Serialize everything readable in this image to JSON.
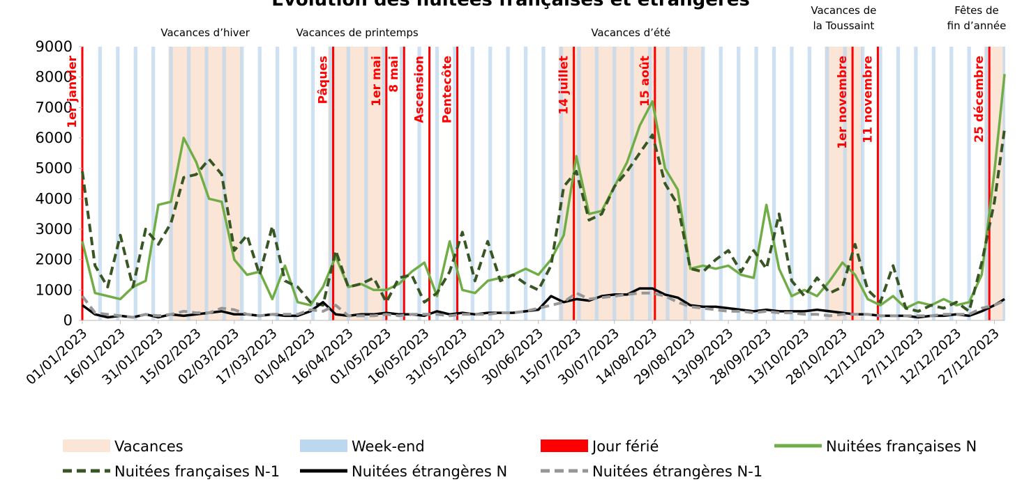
{
  "chart_data": {
    "type": "line",
    "title": "Evolution des nuitées françaises et étrangères",
    "x": [
      "01/01/2023",
      "06/01/2023",
      "11/01/2023",
      "16/01/2023",
      "21/01/2023",
      "26/01/2023",
      "31/01/2023",
      "05/02/2023",
      "10/02/2023",
      "15/02/2023",
      "20/02/2023",
      "25/02/2023",
      "02/03/2023",
      "07/03/2023",
      "12/03/2023",
      "17/03/2023",
      "22/03/2023",
      "27/03/2023",
      "01/04/2023",
      "06/04/2023",
      "11/04/2023",
      "16/04/2023",
      "21/04/2023",
      "26/04/2023",
      "01/05/2023",
      "06/05/2023",
      "11/05/2023",
      "16/05/2023",
      "21/05/2023",
      "26/05/2023",
      "31/05/2023",
      "05/06/2023",
      "10/06/2023",
      "15/06/2023",
      "20/06/2023",
      "25/06/2023",
      "30/06/2023",
      "05/07/2023",
      "10/07/2023",
      "15/07/2023",
      "20/07/2023",
      "25/07/2023",
      "30/07/2023",
      "04/08/2023",
      "09/08/2023",
      "14/08/2023",
      "19/08/2023",
      "24/08/2023",
      "29/08/2023",
      "03/09/2023",
      "08/09/2023",
      "13/09/2023",
      "18/09/2023",
      "23/09/2023",
      "28/09/2023",
      "03/10/2023",
      "08/10/2023",
      "13/10/2023",
      "18/10/2023",
      "23/10/2023",
      "28/10/2023",
      "02/11/2023",
      "07/11/2023",
      "12/11/2023",
      "17/11/2023",
      "22/11/2023",
      "27/11/2023",
      "02/12/2023",
      "07/12/2023",
      "12/12/2023",
      "17/12/2023",
      "22/12/2023",
      "27/12/2023",
      "31/12/2023"
    ],
    "series": [
      {
        "name": "Nuitées françaises N",
        "color": "#70ad47",
        "dash": false,
        "values": [
          2600,
          900,
          800,
          700,
          1100,
          1300,
          3800,
          3900,
          6000,
          5200,
          4000,
          3900,
          2000,
          1500,
          1600,
          700,
          1800,
          600,
          500,
          1100,
          2100,
          1100,
          1200,
          1000,
          1000,
          1200,
          1600,
          1900,
          800,
          2600,
          1000,
          900,
          1300,
          1400,
          1500,
          1700,
          1500,
          2000,
          2800,
          5400,
          3500,
          3600,
          4400,
          5200,
          6400,
          7200,
          5000,
          4300,
          1700,
          1800,
          1700,
          1800,
          1500,
          1400,
          3800,
          1700,
          800,
          1000,
          800,
          1300,
          1900,
          1500,
          700,
          500,
          800,
          400,
          600,
          500,
          700,
          500,
          600,
          1500,
          4900,
          8100
        ]
      },
      {
        "name": "Nuitées françaises N-1",
        "color": "#375623",
        "dash": true,
        "values": [
          4900,
          1800,
          1100,
          2800,
          1100,
          3000,
          2500,
          3200,
          4700,
          4800,
          5300,
          4800,
          2300,
          2800,
          1500,
          3100,
          1300,
          1100,
          600,
          500,
          2300,
          1100,
          1200,
          1400,
          600,
          1400,
          1500,
          600,
          900,
          1600,
          2900,
          1300,
          2600,
          1300,
          1500,
          1200,
          1000,
          1800,
          4400,
          4900,
          3300,
          3500,
          4400,
          4900,
          5500,
          6100,
          4500,
          3800,
          1700,
          1600,
          2000,
          2300,
          1600,
          2300,
          1700,
          3500,
          1300,
          800,
          1400,
          900,
          1100,
          2500,
          1000,
          600,
          1800,
          400,
          300,
          500,
          400,
          600,
          300,
          1900,
          3900,
          6300
        ]
      },
      {
        "name": "Nuitées étrangères N",
        "color": "#000000",
        "dash": false,
        "values": [
          500,
          200,
          100,
          150,
          100,
          200,
          100,
          200,
          150,
          200,
          250,
          300,
          200,
          200,
          150,
          200,
          150,
          150,
          300,
          600,
          200,
          150,
          200,
          200,
          250,
          200,
          200,
          150,
          300,
          200,
          250,
          200,
          250,
          250,
          250,
          300,
          350,
          800,
          600,
          700,
          650,
          800,
          850,
          850,
          1050,
          1050,
          850,
          750,
          500,
          450,
          450,
          400,
          350,
          300,
          350,
          300,
          300,
          300,
          350,
          300,
          250,
          200,
          200,
          150,
          150,
          150,
          100,
          150,
          150,
          200,
          150,
          300,
          500,
          700
        ]
      },
      {
        "name": "Nuitées étrangères N-1",
        "color": "#969696",
        "dash": true,
        "values": [
          800,
          250,
          200,
          150,
          100,
          200,
          150,
          200,
          300,
          250,
          250,
          400,
          350,
          200,
          150,
          200,
          200,
          200,
          350,
          300,
          500,
          150,
          150,
          150,
          200,
          150,
          200,
          200,
          200,
          150,
          200,
          200,
          200,
          250,
          250,
          300,
          400,
          500,
          600,
          900,
          700,
          750,
          800,
          850,
          900,
          900,
          800,
          600,
          450,
          400,
          350,
          300,
          300,
          250,
          300,
          250,
          250,
          200,
          200,
          150,
          200,
          200,
          200,
          150,
          150,
          150,
          150,
          150,
          200,
          200,
          200,
          400,
          500,
          650
        ]
      }
    ],
    "xlim": [
      "01/01/2023",
      "31/12/2023"
    ],
    "xticks": [
      "01/01/2023",
      "16/01/2023",
      "31/01/2023",
      "15/02/2023",
      "02/03/2023",
      "17/03/2023",
      "01/04/2023",
      "16/04/2023",
      "01/05/2023",
      "16/05/2023",
      "31/05/2023",
      "15/06/2023",
      "30/06/2023",
      "15/07/2023",
      "30/07/2023",
      "14/08/2023",
      "29/08/2023",
      "13/09/2023",
      "28/09/2023",
      "13/10/2023",
      "28/10/2023",
      "12/11/2023",
      "27/11/2023",
      "12/12/2023",
      "27/12/2023"
    ],
    "ylim": [
      0,
      9000
    ],
    "yticks": [
      0,
      1000,
      2000,
      3000,
      4000,
      5000,
      6000,
      7000,
      8000,
      9000
    ],
    "vacations": [
      {
        "label": "Vacances d’hiver",
        "start": "04/02/2023",
        "end": "05/03/2023"
      },
      {
        "label": "Vacances de printemps",
        "start": "08/04/2023",
        "end": "01/05/2023"
      },
      {
        "label": "Vacances d’été",
        "start": "08/07/2023",
        "end": "03/09/2023"
      },
      {
        "label": "Vacances de la Toussaint",
        "start": "21/10/2023",
        "end": "05/11/2023"
      },
      {
        "label": "Fêtes de fin d’année",
        "start": "23/12/2023",
        "end": "31/12/2023"
      }
    ],
    "holidays": [
      {
        "label": "1er janvier",
        "date": "01/01/2023"
      },
      {
        "label": "Pâques",
        "date": "10/04/2023"
      },
      {
        "label": "1er mai",
        "date": "01/05/2023"
      },
      {
        "label": "8 mai",
        "date": "08/05/2023"
      },
      {
        "label": "Ascension",
        "date": "18/05/2023"
      },
      {
        "label": "Pentecôte",
        "date": "29/05/2023"
      },
      {
        "label": "14 juillet",
        "date": "14/07/2023"
      },
      {
        "label": "15 août",
        "date": "15/08/2023"
      },
      {
        "label": "1er novembre",
        "date": "01/11/2023"
      },
      {
        "label": "11 novembre",
        "date": "11/11/2023"
      },
      {
        "label": "25 décembre",
        "date": "25/12/2023"
      }
    ],
    "legend_items": [
      {
        "name": "Vacances",
        "color": "#fbe5d6"
      },
      {
        "name": "Week-end",
        "color": "#bdd7ee"
      },
      {
        "name": "Jour férié",
        "color": "#ff0000"
      }
    ]
  }
}
